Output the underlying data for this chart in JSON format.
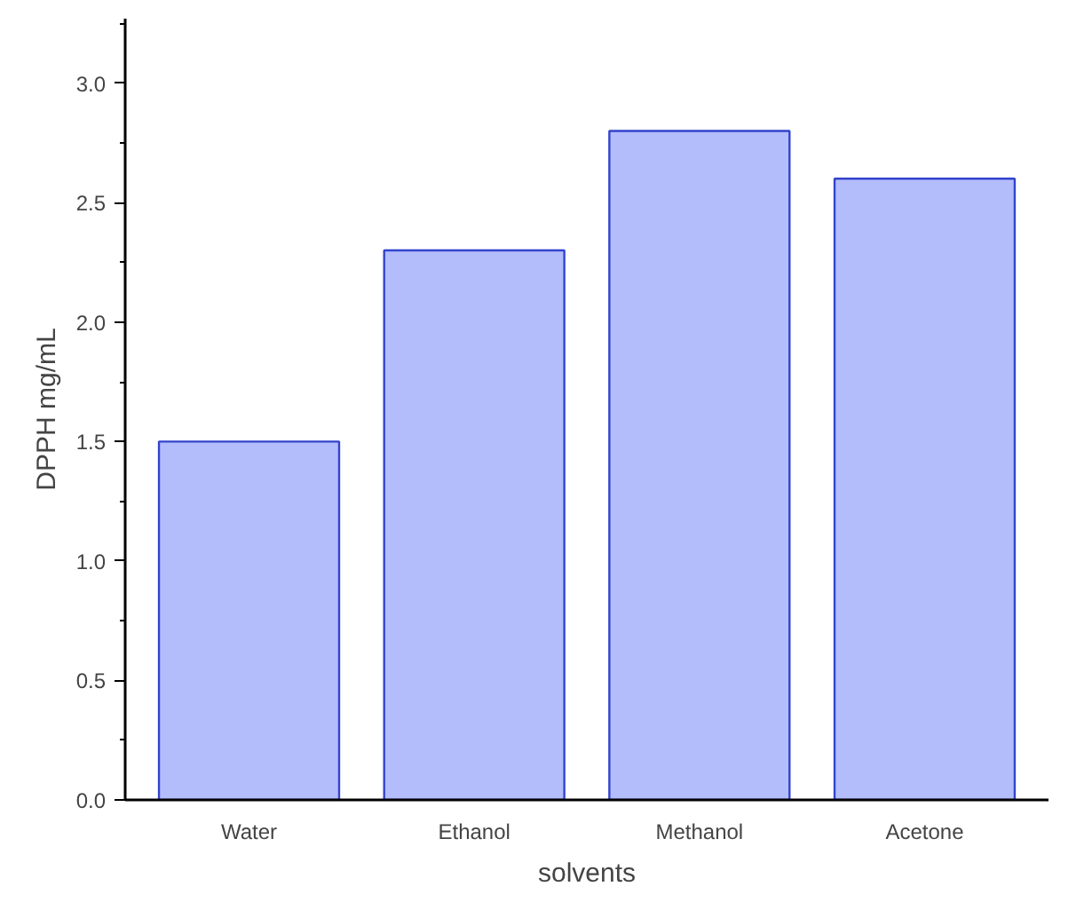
{
  "chart_data": {
    "type": "bar",
    "xlabel": "solvents",
    "ylabel": "DPPH mg/mL",
    "categories": [
      "Water",
      "Ethanol",
      "Methanol",
      "Acetone"
    ],
    "values": [
      1.5,
      2.3,
      2.8,
      2.6
    ],
    "color": "#b4bdfb",
    "ylim": [
      0,
      3.27
    ],
    "yticks": [
      {
        "value": 0,
        "label": "0.0"
      },
      {
        "value": 0.5,
        "label": "0.5"
      },
      {
        "value": 1,
        "label": "1.0"
      },
      {
        "value": 1.5,
        "label": "1.5"
      },
      {
        "value": 2,
        "label": "2.0"
      },
      {
        "value": 2.5,
        "label": "2.5"
      },
      {
        "value": 3,
        "label": "3.0"
      }
    ],
    "grid": false
  }
}
